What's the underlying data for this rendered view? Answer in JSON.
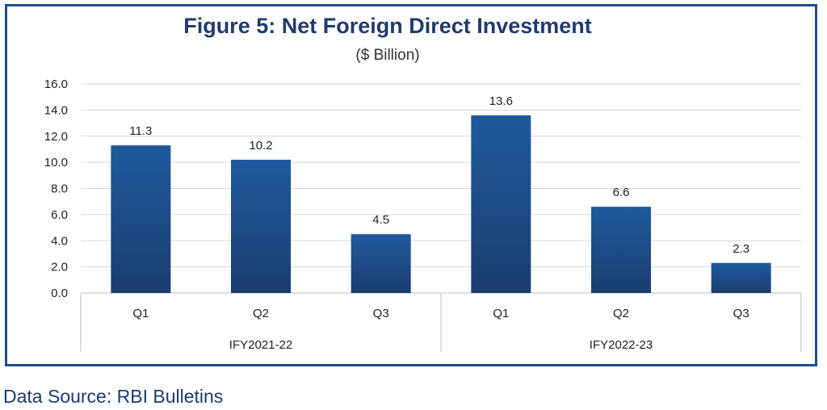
{
  "chart_data": {
    "type": "bar",
    "title": "Figure 5: Net Foreign Direct Investment",
    "subtitle": "($ Billion)",
    "categories": [
      "Q1",
      "Q2",
      "Q3",
      "Q1",
      "Q2",
      "Q3"
    ],
    "groups": [
      {
        "label": "IFY2021-22",
        "categories": [
          "Q1",
          "Q2",
          "Q3"
        ]
      },
      {
        "label": "IFY2022-23",
        "categories": [
          "Q1",
          "Q2",
          "Q3"
        ]
      }
    ],
    "values": [
      11.3,
      10.2,
      4.5,
      13.6,
      6.6,
      2.3
    ],
    "data_labels": [
      "11.3",
      "10.2",
      "4.5",
      "13.6",
      "6.6",
      "2.3"
    ],
    "ylim": [
      0,
      16
    ],
    "yticks": [
      "0.0",
      "2.0",
      "4.0",
      "6.0",
      "8.0",
      "10.0",
      "12.0",
      "14.0",
      "16.0"
    ],
    "grid": true,
    "bar_color": "#1f5a9e",
    "bar_color_dark": "#1a3d6e",
    "xlabel": "",
    "ylabel": ""
  },
  "footer": {
    "source": "Data Source: RBI Bulletins"
  }
}
